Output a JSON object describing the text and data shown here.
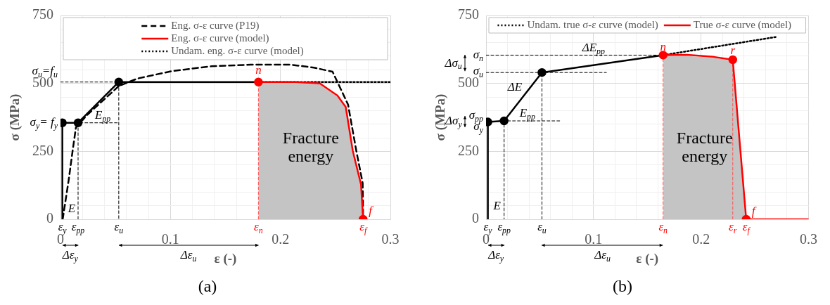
{
  "chart_data": [
    {
      "type": "line",
      "title": "(a)",
      "xlabel": "ε (-)",
      "ylabel": "σ (MPa)",
      "xlim": [
        0,
        0.3
      ],
      "ylim": [
        0,
        750
      ],
      "xticks": [
        0,
        {
          "value": 0.02,
          "label": null
        },
        {
          "value": 0.04,
          "label": null
        },
        {
          "value": 0.06,
          "label": null
        },
        {
          "value": 0.08,
          "label": null
        },
        0.1,
        {
          "value": 0.12,
          "label": null
        },
        {
          "value": 0.14,
          "label": null
        },
        {
          "value": 0.16,
          "label": null
        },
        {
          "value": 0.18,
          "label": null
        },
        0.2,
        {
          "value": 0.22,
          "label": null
        },
        {
          "value": 0.24,
          "label": null
        },
        {
          "value": 0.26,
          "label": null
        },
        {
          "value": 0.28,
          "label": null
        },
        0.3
      ],
      "yticks": [
        0,
        {
          "value": 50,
          "label": null
        },
        {
          "value": 100,
          "label": null
        },
        {
          "value": 150,
          "label": null
        },
        {
          "value": 200,
          "label": null
        },
        250,
        {
          "value": 300,
          "label": null
        },
        {
          "value": 350,
          "label": null
        },
        {
          "value": 400,
          "label": null
        },
        {
          "value": 450,
          "label": null
        },
        500,
        {
          "value": 550,
          "label": null
        },
        {
          "value": 600,
          "label": null
        },
        {
          "value": 650,
          "label": null
        },
        {
          "value": 700,
          "label": null
        },
        750
      ],
      "grid": true,
      "legend": "top",
      "series": [
        {
          "name": "Eng. σ-ε curve (P19)",
          "color": "#000000",
          "line_style": "dashed",
          "x": [
            0.002,
            0.0074,
            0.011,
            0.014,
            0.024,
            0.053,
            0.07,
            0.101,
            0.137,
            0.173,
            0.209,
            0.2305,
            0.2474,
            0.2615,
            0.269,
            0.2748,
            0.2752
          ],
          "values": [
            0,
            143,
            251,
            337,
            383,
            490,
            518,
            545,
            563,
            569,
            569,
            558,
            543,
            422,
            252,
            133,
            5
          ]
        },
        {
          "name": "Eng. σ-ε curve (model)",
          "color": "#ff0000",
          "x": [
            0.18,
            0.214,
            0.2359,
            0.2519,
            0.2594,
            0.2658,
            0.2733,
            0.2752
          ],
          "values": [
            505,
            505,
            500,
            455,
            413,
            252,
            128,
            0
          ]
        },
        {
          "name": "Undam. eng. σ-ε curve (model)",
          "color": "#000000",
          "line_style": "dotted",
          "x": [
            0.18,
            0.3
          ],
          "values": [
            505,
            505
          ]
        },
        {
          "color": "#000000",
          "x": [
            0.0017,
            0.0017,
            0.016,
            0.053,
            0.18
          ],
          "values": [
            0,
            355,
            355,
            505,
            505
          ]
        },
        {
          "color": "#000000",
          "line_style": "dashed",
          "x": [
            0,
            0.053,
            0.053
          ],
          "values": [
            505,
            505,
            0
          ]
        },
        {
          "color": "#000000",
          "line_style": "dashed",
          "x": [
            0.016,
            0.016,
            0.053
          ],
          "values": [
            0,
            355,
            355
          ]
        },
        {
          "color": "#ff5050",
          "line_style": "dashed",
          "x": [
            0.18,
            0.18
          ],
          "values": [
            0,
            505
          ]
        },
        {
          "type": "scatter",
          "marker": "circle",
          "color": "#000000",
          "x": [
            0.0017,
            0.016,
            0.053
          ],
          "values": [
            355,
            355,
            505
          ]
        },
        {
          "type": "scatter",
          "marker": "circle",
          "color": "#ff0000",
          "x": [
            0.18,
            0.2752
          ],
          "values": [
            505,
            0
          ]
        }
      ],
      "bands": [
        {
          "axis": "x",
          "from": 0.18,
          "to": 0.2752,
          "label": "Fracture energy",
          "color": "#c4c4c4"
        }
      ],
      "annotations": [
        {
          "text": "σ$_{u}$=f$_{u}$",
          "x": 0,
          "y": 505
        },
        {
          "text": "σ$_{y}$= f$_{y}$",
          "x": 0.0017,
          "y": 355
        },
        {
          "text": "E",
          "x": 0.0017,
          "y": 0
        },
        {
          "text": "E$_{pp}$",
          "x": 0.016,
          "y": 355
        },
        {
          "text": "n",
          "x": 0.18,
          "y": 505
        },
        {
          "text": "f",
          "x": 0.2752,
          "y": 0
        },
        {
          "text": "ε$_{y}$",
          "x": 0.0017,
          "y": 0
        },
        {
          "text": "ε$_{pp}$",
          "x": 0.016,
          "y": 0
        },
        {
          "text": "ε$_{u}$",
          "x": 0.053,
          "y": 0
        },
        {
          "text": "ε$_{n}$",
          "x": 0.18,
          "y": 0
        },
        {
          "text": "ε$_{f}$",
          "x": 0.2752,
          "y": 0
        },
        "Δε$_{y}$",
        "Δε$_{u}$"
      ]
    },
    {
      "type": "line",
      "title": "(b)",
      "xlabel": "ε (-)",
      "ylabel": "σ (MPa)",
      "xlim": [
        0,
        0.3
      ],
      "ylim": [
        0,
        750
      ],
      "xticks": [
        0,
        {
          "value": 0.02,
          "label": null
        },
        {
          "value": 0.04,
          "label": null
        },
        {
          "value": 0.06,
          "label": null
        },
        {
          "value": 0.08,
          "label": null
        },
        0.1,
        {
          "value": 0.12,
          "label": null
        },
        {
          "value": 0.14,
          "label": null
        },
        {
          "value": 0.16,
          "label": null
        },
        {
          "value": 0.18,
          "label": null
        },
        0.2,
        {
          "value": 0.22,
          "label": null
        },
        {
          "value": 0.24,
          "label": null
        },
        {
          "value": 0.26,
          "label": null
        },
        {
          "value": 0.28,
          "label": null
        },
        0.3
      ],
      "yticks": [
        0,
        {
          "value": 50,
          "label": null
        },
        {
          "value": 100,
          "label": null
        },
        {
          "value": 150,
          "label": null
        },
        {
          "value": 200,
          "label": null
        },
        250,
        {
          "value": 300,
          "label": null
        },
        {
          "value": 350,
          "label": null
        },
        {
          "value": 400,
          "label": null
        },
        {
          "value": 450,
          "label": null
        },
        500,
        {
          "value": 550,
          "label": null
        },
        {
          "value": 600,
          "label": null
        },
        {
          "value": 650,
          "label": null
        },
        {
          "value": 700,
          "label": null
        },
        750
      ],
      "grid": true,
      "legend": "top",
      "series": [
        {
          "name": "Undam. true σ-ε curve (model)",
          "color": "#000000",
          "line_style": "dotted",
          "x": [
            0.1647,
            0.27
          ],
          "values": [
            604,
            671
          ]
        },
        {
          "name": "True σ-ε curve (model)",
          "color": "#ff0000",
          "x": [
            0.1647,
            0.187,
            0.211,
            0.2295,
            0.242,
            0.3
          ],
          "values": [
            604,
            605,
            598,
            587,
            0,
            0
          ]
        },
        {
          "color": "#000000",
          "x": [
            0.0017,
            0.0017,
            0.0168,
            0.052,
            0.1647
          ],
          "values": [
            0,
            358,
            362,
            540,
            604
          ]
        },
        {
          "color": "#000000",
          "line_style": "dashed",
          "x": [
            0,
            0.1647
          ],
          "values": [
            604,
            604
          ]
        },
        {
          "color": "#000000",
          "line_style": "dashed",
          "x": [
            0,
            0.112
          ],
          "values": [
            540,
            540
          ]
        },
        {
          "color": "#000000",
          "line_style": "dashed",
          "x": [
            0.0685,
            0.0168,
            0.0168
          ],
          "values": [
            362,
            362,
            0
          ]
        },
        {
          "color": "#000000",
          "line_style": "dashed",
          "x": [
            0.052,
            0.052
          ],
          "values": [
            0,
            540
          ]
        },
        {
          "color": "#ff5050",
          "line_style": "dashed",
          "x": [
            0.1647,
            0.1647
          ],
          "values": [
            0,
            604
          ]
        },
        {
          "color": "#ff5050",
          "line_style": "dashed",
          "x": [
            0.2295,
            0.2295
          ],
          "values": [
            0,
            587
          ]
        },
        {
          "type": "scatter",
          "marker": "circle",
          "color": "#000000",
          "x": [
            0.0017,
            0.0168,
            0.052
          ],
          "values": [
            358,
            362,
            540
          ]
        },
        {
          "type": "scatter",
          "marker": "circle",
          "color": "#ff0000",
          "x": [
            0.1647,
            0.2295,
            0.242
          ],
          "values": [
            604,
            587,
            0
          ]
        }
      ],
      "bands": [
        {
          "axis": "x",
          "from": 0.1647,
          "to": 0.242,
          "label": "Fracture energy",
          "color": "#c4c4c4"
        }
      ],
      "annotations": [
        {
          "text": "σ$_{n}$",
          "x": 0,
          "y": 604
        },
        "Δσ$_{u}$",
        {
          "text": "σ$_{u}$",
          "x": 0,
          "y": 540
        },
        {
          "text": "σ$_{pp}$",
          "x": 0.0168,
          "y": 362
        },
        "Δσ$_{y}$",
        {
          "text": "σ$_{y}$",
          "x": 0.0017,
          "y": 358
        },
        {
          "text": "ΔE$_{pp}$",
          "x": 0.1,
          "y": 567
        },
        {
          "text": "ΔE",
          "x": 0.03,
          "y": 429
        },
        {
          "text": "E$_{pp}$",
          "x": 0.0168,
          "y": 362
        },
        {
          "text": "E",
          "x": 0.0017,
          "y": 0
        },
        {
          "text": "n",
          "x": 0.1647,
          "y": 604
        },
        {
          "text": "r",
          "x": 0.2295,
          "y": 587
        },
        {
          "text": "f",
          "x": 0.242,
          "y": 0
        },
        {
          "text": "ε$_{y}$",
          "x": 0.0017,
          "y": 0
        },
        {
          "text": "ε$_{pp}$",
          "x": 0.0168,
          "y": 0
        },
        {
          "text": "ε$_{u}$",
          "x": 0.052,
          "y": 0
        },
        {
          "text": "ε$_{n}$",
          "x": 0.1647,
          "y": 0
        },
        {
          "text": "ε$_{r}$",
          "x": 0.2295,
          "y": 0
        },
        {
          "text": "ε$_{f}$",
          "x": 0.242,
          "y": 0
        },
        "Δε$_{y}$",
        "Δε$_{u}$"
      ]
    }
  ]
}
